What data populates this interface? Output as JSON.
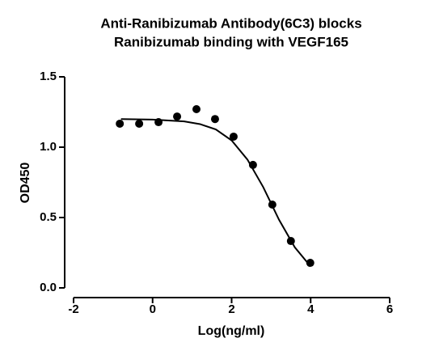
{
  "chart_data": {
    "type": "scatter",
    "title": [
      "Anti-Ranibizumab Antibody(6C3) blocks",
      "Ranibizumab binding with VEGF165"
    ],
    "x_label": "Log(ng/ml)",
    "y_label": "OD450",
    "x": [
      -0.83,
      -0.34,
      0.15,
      0.62,
      1.11,
      1.58,
      2.05,
      2.54,
      3.03,
      3.5,
      3.99
    ],
    "values": [
      1.167,
      1.167,
      1.178,
      1.218,
      1.27,
      1.2,
      1.075,
      0.874,
      0.592,
      0.333,
      0.178
    ],
    "fit": {
      "x": [
        -0.8,
        0,
        0.8,
        1.2,
        1.6,
        2.0,
        2.4,
        2.8,
        3.2,
        3.6,
        4.0
      ],
      "values": [
        1.2,
        1.196,
        1.183,
        1.164,
        1.126,
        1.048,
        0.912,
        0.716,
        0.484,
        0.288,
        0.152
      ]
    },
    "color": "#000000",
    "xlim": [
      -2,
      6
    ],
    "xticks": [
      -2,
      0,
      2,
      4,
      6
    ],
    "ylim": [
      0,
      1.5
    ],
    "yticks": [
      {
        "value": 0,
        "label": "0.0"
      },
      {
        "value": 0.5,
        "label": "0.5"
      },
      {
        "value": 1,
        "label": "1.0"
      },
      {
        "value": 1.5,
        "label": "1.5"
      }
    ]
  }
}
